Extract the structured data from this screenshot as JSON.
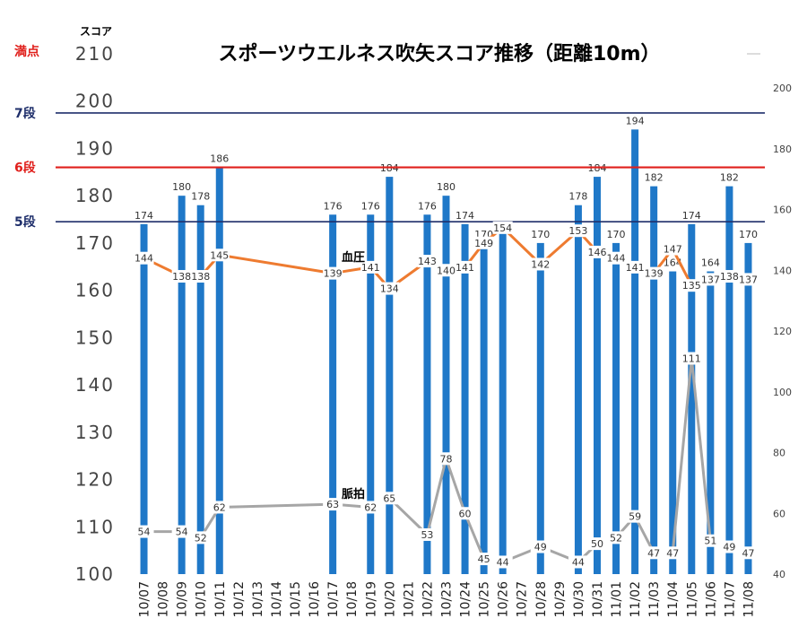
{
  "chart_data": {
    "type": "bar",
    "title": "スポーツウエルネス吹矢スコア推移（距離10m）",
    "ylabel": "スコア",
    "ylim": [
      100,
      210
    ],
    "yticks": [
      100,
      110,
      120,
      130,
      140,
      150,
      160,
      170,
      180,
      190,
      200,
      210
    ],
    "y2lim": [
      40,
      200
    ],
    "y2ticks": [
      40,
      60,
      80,
      100,
      120,
      140,
      160,
      180,
      200
    ],
    "categories": [
      "10/07",
      "10/08",
      "10/09",
      "10/10",
      "10/11",
      "10/12",
      "10/13",
      "10/14",
      "10/15",
      "10/16",
      "10/17",
      "10/18",
      "10/19",
      "10/20",
      "10/21",
      "10/22",
      "10/23",
      "10/24",
      "10/25",
      "10/26",
      "10/27",
      "10/28",
      "10/29",
      "10/30",
      "10/31",
      "11/01",
      "11/02",
      "11/03",
      "11/04",
      "11/05",
      "11/06",
      "11/07",
      "11/08"
    ],
    "score_values": [
      174,
      null,
      180,
      178,
      186,
      null,
      null,
      null,
      null,
      null,
      176,
      null,
      176,
      184,
      null,
      176,
      180,
      174,
      170,
      172,
      null,
      170,
      null,
      178,
      184,
      170,
      194,
      182,
      164,
      174,
      164,
      182,
      170
    ],
    "bp_values": [
      144,
      null,
      138,
      138,
      145,
      null,
      null,
      null,
      null,
      null,
      139,
      null,
      141,
      134,
      null,
      143,
      140,
      141,
      149,
      154,
      null,
      142,
      null,
      153,
      146,
      144,
      141,
      139,
      147,
      135,
      137,
      138,
      137
    ],
    "pulse_values": [
      54,
      null,
      54,
      52,
      62,
      null,
      null,
      null,
      null,
      null,
      63,
      null,
      62,
      65,
      null,
      53,
      78,
      60,
      45,
      44,
      null,
      49,
      null,
      44,
      50,
      52,
      59,
      47,
      47,
      111,
      51,
      49,
      47
    ],
    "series_labels": {
      "bp": "血圧",
      "pulse": "脈拍"
    },
    "reference_lines": [
      {
        "label": "満点",
        "value": 210,
        "color": "#e0201c"
      },
      {
        "label": "7段",
        "value": 197.5,
        "color": "#1f2f6b"
      },
      {
        "label": "6段",
        "value": 186,
        "color": "#e0201c"
      },
      {
        "label": "5段",
        "value": 174.5,
        "color": "#1f2f6b"
      }
    ],
    "colors": {
      "bar": "#1f78c8",
      "bp": "#ee7b30",
      "pulse": "#a6a6a6"
    }
  }
}
